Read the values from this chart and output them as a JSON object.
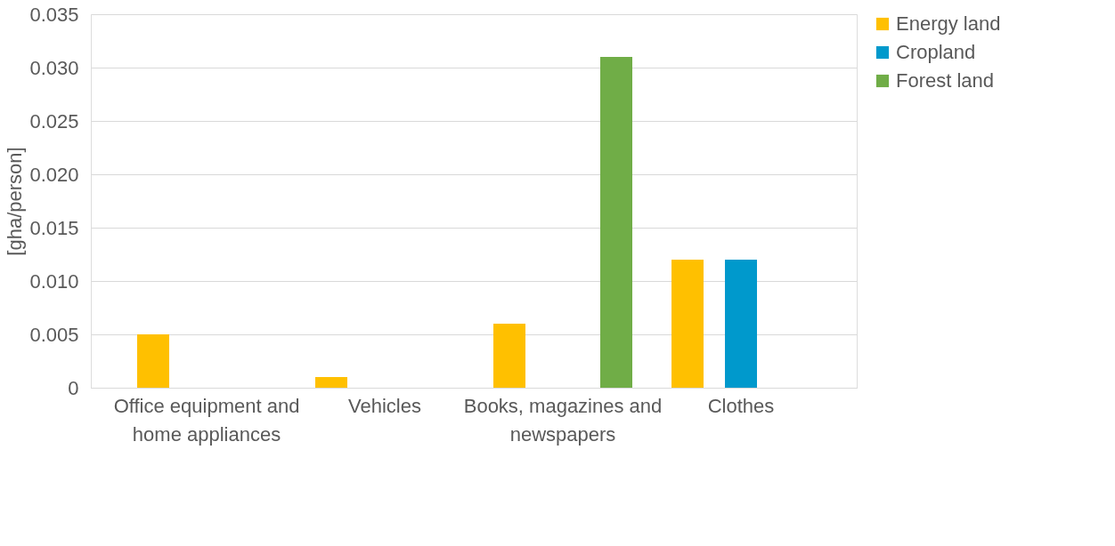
{
  "chart_data": {
    "type": "bar",
    "ylabel": "[gha/person]",
    "categories": [
      "Office equipment and home appliances",
      "Vehicles",
      "Books, magazines and newspapers",
      "Clothes"
    ],
    "series": [
      {
        "name": "Energy land",
        "color": "#ffc000",
        "values": [
          0.005,
          0.001,
          0.006,
          0.012
        ]
      },
      {
        "name": "Cropland",
        "color": "#0099cc",
        "values": [
          null,
          null,
          null,
          0.012
        ]
      },
      {
        "name": "Forest land",
        "color": "#70ad47",
        "values": [
          null,
          null,
          0.031,
          null
        ]
      }
    ],
    "ylim": [
      0,
      0.035
    ],
    "yticks": [
      0,
      0.005,
      {
        "value": 0.01,
        "label": "0.010"
      },
      0.015,
      {
        "value": 0.02,
        "label": "0.020"
      },
      0.025,
      {
        "value": 0.03,
        "label": "0.030"
      },
      0.035
    ],
    "grid": "y",
    "legend": "right"
  }
}
